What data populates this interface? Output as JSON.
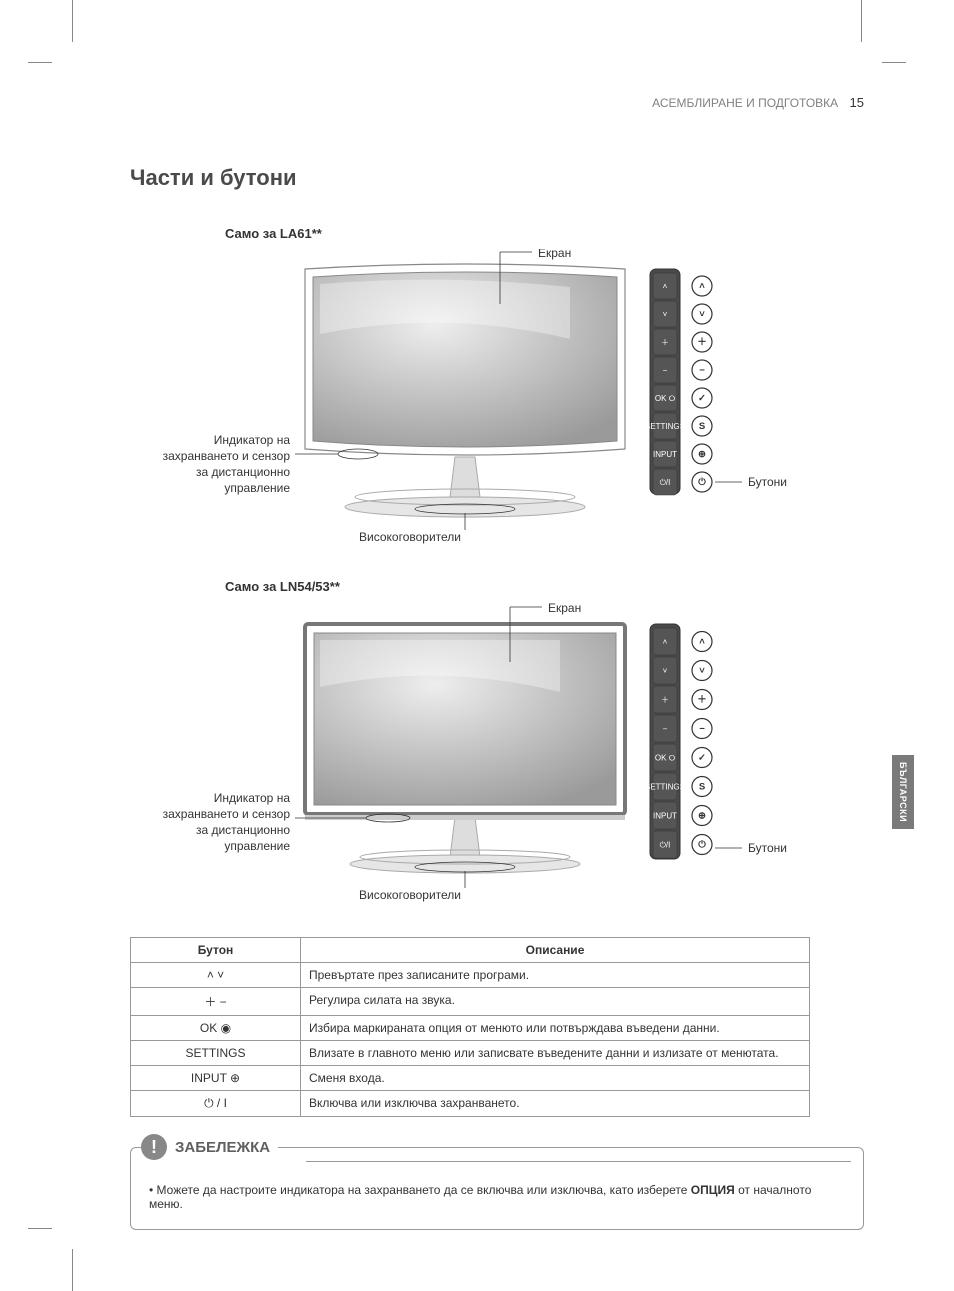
{
  "header": {
    "section": "АСЕМБЛИРАНЕ И ПОДГОТОВКА",
    "page": "15"
  },
  "title": "Части и бутони",
  "side_tab": "БЪЛГАРСКИ",
  "diagrams": [
    {
      "model": "Само за LA61**",
      "labels": {
        "screen": "Екран",
        "power_sensor_l1": "Индикатор на",
        "power_sensor_l2": "захранването и сензор",
        "power_sensor_l3": "за дистанционно",
        "power_sensor_l4": "управление",
        "speakers": "Високоговорители",
        "buttons": "Бутони"
      },
      "panel_btns": [
        "˄",
        "˅",
        "＋",
        "−",
        "OK ⭘",
        "SETTINGS",
        "INPUT",
        "⏻/I"
      ],
      "panel_round": [
        "˄",
        "˅",
        "＋",
        "−",
        "✓",
        "S",
        "⊕",
        "⏻"
      ]
    },
    {
      "model": "Само за LN54/53**",
      "labels": {
        "screen": "Екран",
        "power_sensor_l1": "Индикатор на",
        "power_sensor_l2": "захранването и сензор",
        "power_sensor_l3": "за дистанционно",
        "power_sensor_l4": "управление",
        "speakers": "Високоговорители",
        "buttons": "Бутони"
      },
      "panel_btns": [
        "˄",
        "˅",
        "＋",
        "−",
        "OK ⭘",
        "SETTINGS",
        "INPUT",
        "⏻/I"
      ],
      "panel_round": [
        "˄",
        "˅",
        "＋",
        "−",
        "✓",
        "S",
        "⊕",
        "⏻"
      ]
    }
  ],
  "table": {
    "headers": [
      "Бутон",
      "Описание"
    ],
    "rows": [
      {
        "btn": "˄ ˅",
        "desc": "Превъртате през записаните програми."
      },
      {
        "btn": "＋ −",
        "desc": "Регулира силата на звука."
      },
      {
        "btn": "OK ◉",
        "desc": "Избира маркираната опция от менюто или потвърждава въведени данни."
      },
      {
        "btn": "SETTINGS",
        "desc": "Влизате в главното меню или записвате въведените данни и излизате от менютата."
      },
      {
        "btn": "INPUT ⊕",
        "desc": "Сменя входа."
      },
      {
        "btn": "⏻ / I",
        "desc": "Включва или изключва захранването."
      }
    ]
  },
  "note": {
    "title": "ЗАБЕЛЕЖКА",
    "items": [
      "Можете да настроите индикатора на захранването да се включва или изключва, като изберете <b>ОПЦИЯ</b> от началното меню."
    ]
  },
  "colors": {
    "panel_bg": "#4a4a4a",
    "screen_grad_a": "#dcdcdc",
    "screen_grad_b": "#a0a0a0",
    "leader": "#333333",
    "box_border": "#999999"
  }
}
